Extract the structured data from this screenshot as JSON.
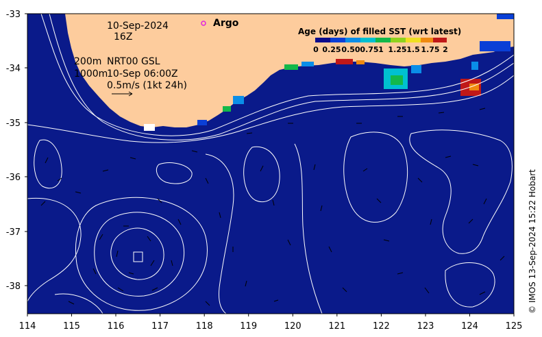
{
  "map": {
    "y_axis_ticks": [
      "-33",
      "-34",
      "-35",
      "-36",
      "-37",
      "-38"
    ],
    "x_axis_ticks": [
      "114",
      "115",
      "116",
      "117",
      "118",
      "119",
      "120",
      "121",
      "122",
      "123",
      "124",
      "125"
    ],
    "lat_range": [
      -38.5,
      -33
    ],
    "lon_range": [
      114,
      125
    ]
  },
  "annotations": {
    "date": "10-Sep-2024",
    "time": "16Z",
    "contour_200": "200m",
    "contour_1000": "1000m",
    "altimetry_product": "NRT00 GSL",
    "altimetry_time": "10-Sep 06:00Z",
    "vector_scale": "0.5m/s (1kt 24h)"
  },
  "legend": {
    "argo_label": "Argo",
    "colorbar_title": "Age (days) of filled SST (wrt latest)",
    "colorbar_ticks": [
      "0",
      "0.25",
      "0.50",
      "0.75",
      "1",
      "1.25",
      "1.5",
      "1.75",
      "2"
    ],
    "colors": [
      "#0b0b8c",
      "#0a3fd6",
      "#0a8ee8",
      "#00c0d0",
      "#12b84a",
      "#8fd31e",
      "#f0e020",
      "#f08a10",
      "#c01818"
    ]
  },
  "colors": {
    "land": "#fdcc9d",
    "ocean": "#0a1a8a",
    "contour": "#ffffff",
    "argo_marker": "#e020e0"
  },
  "credit": "© IMOS 13-Sep-2024 15:22 Hobart"
}
